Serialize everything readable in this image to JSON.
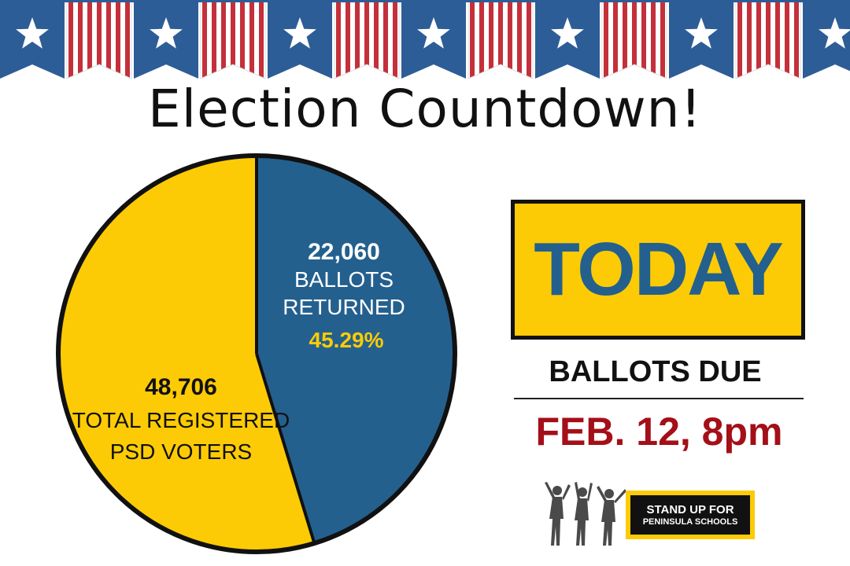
{
  "title": "Election Countdown!",
  "colors": {
    "blue": "#24608e",
    "yellow": "#fccb05",
    "red": "#a40f18",
    "bunting_red": "#c4303a",
    "bunting_blue": "#2d5d96"
  },
  "chart_data": {
    "type": "pie",
    "slices": [
      {
        "label_lines": [
          "BALLOTS",
          "RETURNED"
        ],
        "value": 22060,
        "value_text": "22,060",
        "percent": 45.29,
        "percent_text": "45.29%",
        "color": "#24608e"
      },
      {
        "label_lines": [
          "TOTAL REGISTERED",
          "PSD VOTERS"
        ],
        "value": 48706,
        "value_text": "48,706",
        "color": "#fccb05"
      }
    ],
    "total_registered": 48706,
    "ballots_returned": 22060
  },
  "deadline": {
    "day": "TODAY",
    "label": "BALLOTS DUE",
    "date": "FEB. 12, 8pm"
  },
  "logo": {
    "line1": "STAND UP FOR",
    "line2": "PENINSULA SCHOOLS"
  }
}
